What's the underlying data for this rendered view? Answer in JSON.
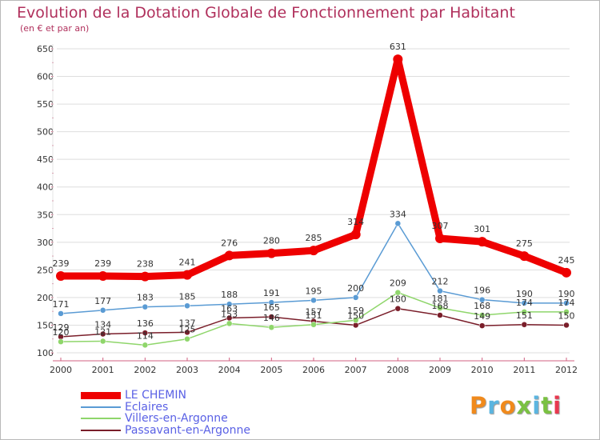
{
  "title": "Evolution de la Dotation Globale de Fonctionnement par Habitant",
  "subtitle": "(en € et par an)",
  "logo_text": "Proxiti",
  "colors": {
    "title": "#b0305c",
    "axis": "#d06080",
    "grid": "#dedede",
    "label": "#333333",
    "legend_text": "#5a61e5",
    "logo": [
      "#f08a1c",
      "#5bb5e0",
      "#f08a1c",
      "#7ac142",
      "#5bb5e0",
      "#7ac142",
      "#e8384f"
    ]
  },
  "chart_data": {
    "type": "line",
    "x": [
      "2000",
      "2001",
      "2002",
      "2003",
      "2004",
      "2005",
      "2006",
      "2007",
      "2008",
      "2009",
      "2010",
      "2011",
      "2012"
    ],
    "ylim": [
      100,
      650
    ],
    "yticks": [
      100,
      150,
      200,
      250,
      300,
      350,
      400,
      450,
      500,
      550,
      600,
      650
    ],
    "grid": true,
    "legend_position": "bottom-left",
    "series": [
      {
        "name": "LE CHEMIN",
        "color": "#ee0000",
        "line_width": 9,
        "marker_radius": 6,
        "values": [
          239,
          239,
          238,
          241,
          276,
          280,
          285,
          314,
          631,
          307,
          301,
          275,
          245
        ],
        "labels": [
          "239",
          "239",
          "238",
          "241",
          "276",
          "280",
          "285",
          "314",
          "631",
          "307",
          "301",
          "275",
          "245"
        ]
      },
      {
        "name": "Eclaires",
        "color": "#5a9bd4",
        "line_width": 1.5,
        "marker_radius": 3.5,
        "values": [
          171,
          177,
          183,
          185,
          188,
          191,
          195,
          200,
          334,
          212,
          196,
          190,
          190
        ],
        "labels": [
          "171",
          "177",
          "183",
          "185",
          "188",
          "191",
          "195",
          "200",
          "334",
          "212",
          "196",
          "190",
          "190"
        ]
      },
      {
        "name": "Villers-en-Argonne",
        "color": "#8fd66b",
        "line_width": 1.5,
        "marker_radius": 3.5,
        "values": [
          120,
          121,
          114,
          125,
          153,
          146,
          151,
          159,
          209,
          181,
          168,
          174,
          174
        ],
        "labels": [
          "120",
          "121",
          "114",
          "125",
          "153",
          "146",
          "151",
          "159",
          "209",
          "181",
          "168",
          "174",
          "174"
        ]
      },
      {
        "name": "Passavant-en-Argonne",
        "color": "#7a1e2a",
        "line_width": 1.5,
        "marker_radius": 3.5,
        "values": [
          129,
          134,
          136,
          137,
          163,
          165,
          157,
          150,
          180,
          168,
          149,
          151,
          150
        ],
        "labels": [
          "129",
          "134",
          "136",
          "137",
          "163",
          "165",
          "157",
          "150",
          "180",
          "168",
          "149",
          "151",
          "150"
        ]
      }
    ]
  }
}
